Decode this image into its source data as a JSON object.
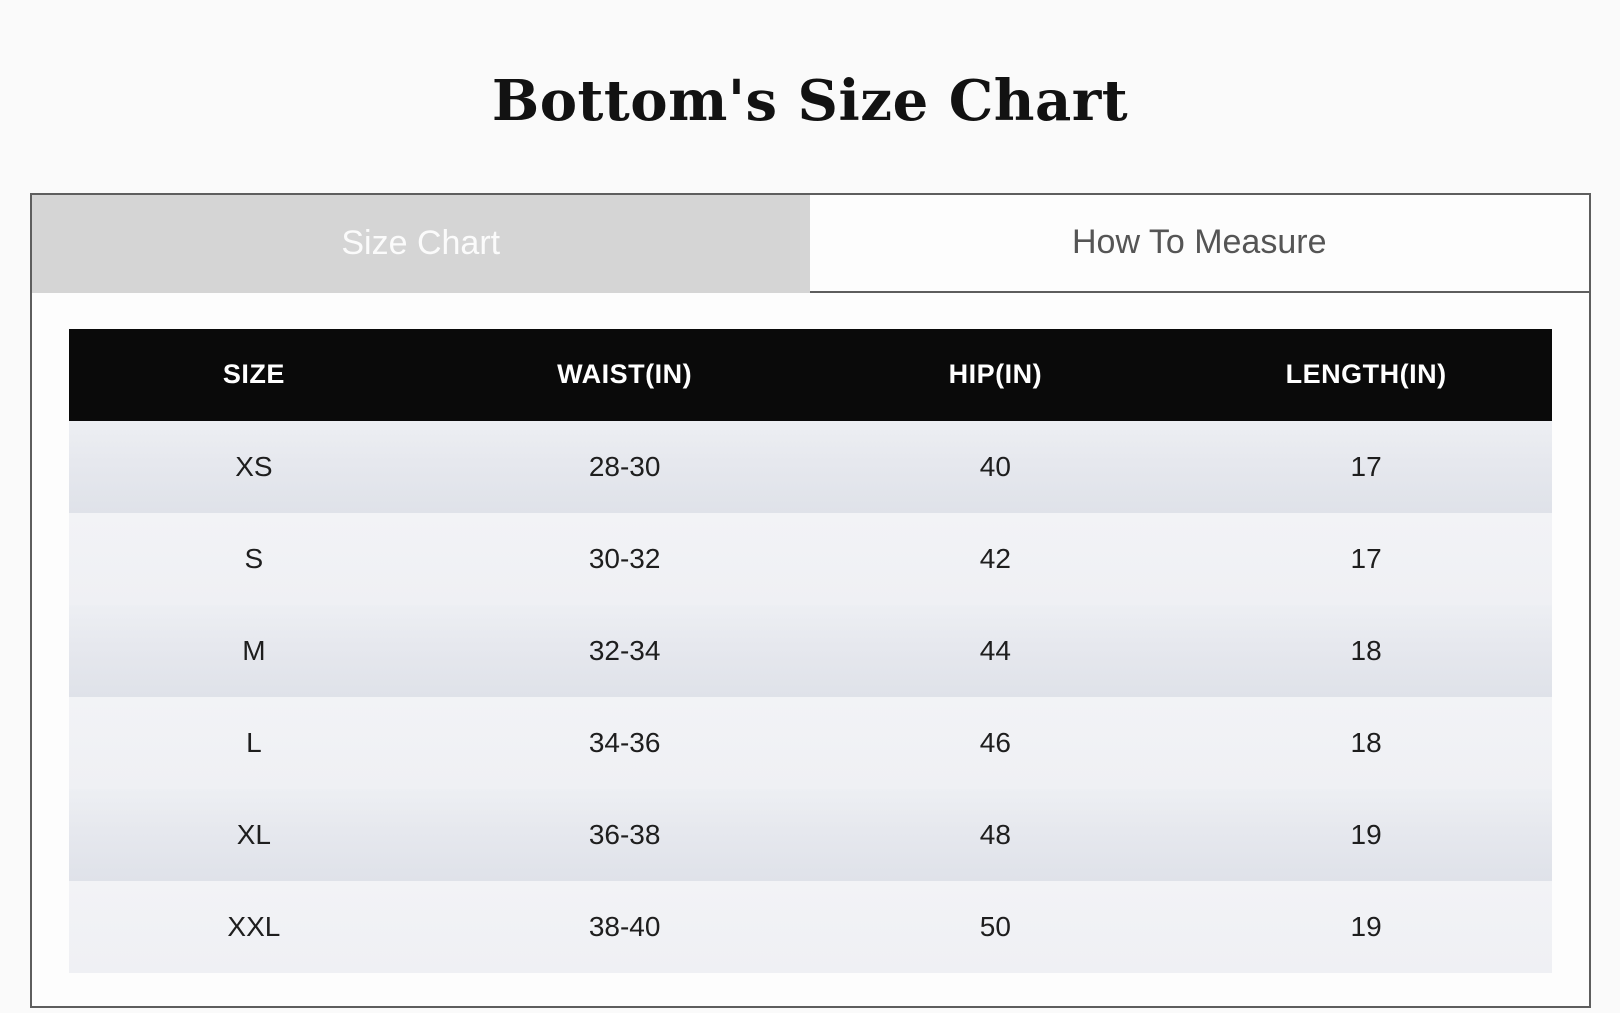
{
  "page": {
    "title": "Bottom's Size Chart"
  },
  "tabs": [
    {
      "label": "Size Chart",
      "active": true
    },
    {
      "label": "How To Measure",
      "active": false
    }
  ],
  "table": {
    "columns": [
      "SIZE",
      "WAIST(IN)",
      "HIP(IN)",
      "LENGTH(IN)"
    ],
    "rows": [
      [
        "XS",
        "28-30",
        "40",
        "17"
      ],
      [
        "S",
        "30-32",
        "42",
        "17"
      ],
      [
        "M",
        "32-34",
        "44",
        "18"
      ],
      [
        "L",
        "34-36",
        "46",
        "18"
      ],
      [
        "XL",
        "36-38",
        "48",
        "19"
      ],
      [
        "XXL",
        "38-40",
        "50",
        "19"
      ]
    ]
  },
  "colors": {
    "page_background": "#fafafa",
    "panel_border": "#5e5e5e",
    "active_tab_background": "#d5d5d5",
    "active_tab_text": "#fbfbfb",
    "inactive_tab_background": "#fdfdfd",
    "inactive_tab_text": "#555555",
    "table_header_background": "#0a0a0a",
    "table_header_text": "#ffffff",
    "row_odd_background": "#e2e4ea",
    "row_even_background": "#f0f1f4",
    "cell_text": "#1e1e1e"
  }
}
